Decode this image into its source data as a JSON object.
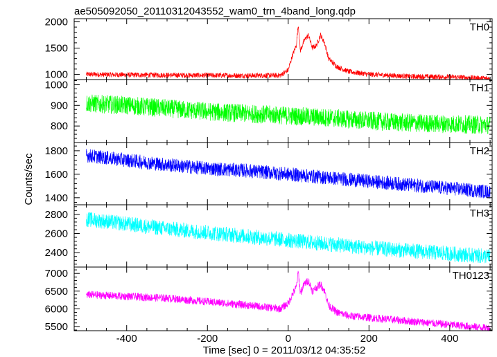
{
  "title": "ae505092050_20110312043552_wam0_trn_4band_long.qdp",
  "xlabel": "Time [sec] 0 = 2011/03/12 04:35:52",
  "ylabel": "Counts/sec",
  "chart_data": {
    "type": "line",
    "title": "ae505092050_20110312043552_wam0_trn_4band_long.qdp",
    "xlabel": "Time [sec] 0 = 2011/03/12 04:35:52",
    "ylabel": "Counts/sec",
    "xlim": [
      -530,
      505
    ],
    "x_ticks": [
      -400,
      -200,
      0,
      200,
      400
    ],
    "grid": false,
    "legend": "none",
    "panels": [
      {
        "name": "TH0",
        "color": "#ff0000",
        "ylim": [
          900,
          2060
        ],
        "y_ticks": [
          1000,
          1500,
          2000
        ],
        "x": [
          -500,
          -400,
          -300,
          -200,
          -100,
          -20,
          0,
          10,
          20,
          25,
          30,
          40,
          50,
          60,
          70,
          80,
          90,
          100,
          120,
          150,
          200,
          300,
          400,
          500
        ],
        "y": [
          1000,
          990,
          985,
          980,
          975,
          980,
          1080,
          1350,
          1550,
          1950,
          1450,
          1650,
          1750,
          1500,
          1550,
          1750,
          1600,
          1300,
          1150,
          1050,
          1000,
          960,
          950,
          920
        ],
        "noise_amplitude": 50
      },
      {
        "name": "TH1",
        "color": "#00ff00",
        "ylim": [
          720,
          1025
        ],
        "y_ticks": [
          800,
          900,
          1000
        ],
        "x": [
          -500,
          -400,
          -300,
          -200,
          -100,
          0,
          100,
          200,
          300,
          400,
          500
        ],
        "y": [
          910,
          900,
          885,
          870,
          860,
          850,
          840,
          825,
          815,
          810,
          805
        ],
        "noise_amplitude": 45
      },
      {
        "name": "TH2",
        "color": "#0000ff",
        "ylim": [
          1340,
          1870
        ],
        "y_ticks": [
          1400,
          1600,
          1800
        ],
        "x": [
          -500,
          -400,
          -300,
          -200,
          -100,
          0,
          100,
          200,
          300,
          400,
          500
        ],
        "y": [
          1760,
          1720,
          1680,
          1650,
          1630,
          1600,
          1570,
          1540,
          1510,
          1480,
          1450
        ],
        "noise_amplitude": 60
      },
      {
        "name": "TH3",
        "color": "#00ffff",
        "ylim": [
          2250,
          2900
        ],
        "y_ticks": [
          2400,
          2600,
          2800
        ],
        "x": [
          -500,
          -400,
          -300,
          -200,
          -100,
          0,
          100,
          200,
          300,
          400,
          500
        ],
        "y": [
          2750,
          2700,
          2650,
          2610,
          2570,
          2530,
          2490,
          2450,
          2420,
          2390,
          2360
        ],
        "noise_amplitude": 80
      },
      {
        "name": "TH0123",
        "color": "#ff00ff",
        "ylim": [
          5380,
          7180
        ],
        "y_ticks": [
          5500,
          6000,
          6500,
          7000
        ],
        "x": [
          -500,
          -400,
          -300,
          -200,
          -100,
          -20,
          0,
          10,
          20,
          25,
          30,
          40,
          50,
          60,
          70,
          80,
          90,
          100,
          120,
          150,
          200,
          300,
          400,
          500
        ],
        "y": [
          6400,
          6350,
          6300,
          6200,
          6100,
          6000,
          6150,
          6400,
          6600,
          7050,
          6450,
          6700,
          6800,
          6500,
          6600,
          6700,
          6500,
          6100,
          5900,
          5800,
          5750,
          5650,
          5550,
          5450
        ],
        "noise_amplitude": 110
      }
    ]
  }
}
